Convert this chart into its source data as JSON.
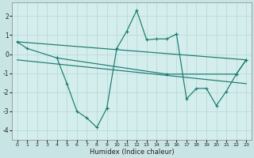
{
  "xlabel": "Humidex (Indice chaleur)",
  "xlim": [
    -0.5,
    23.5
  ],
  "ylim": [
    -4.5,
    2.7
  ],
  "yticks": [
    -4,
    -3,
    -2,
    -1,
    0,
    1,
    2
  ],
  "xticks": [
    0,
    1,
    2,
    3,
    4,
    5,
    6,
    7,
    8,
    9,
    10,
    11,
    12,
    13,
    14,
    15,
    16,
    17,
    18,
    19,
    20,
    21,
    22,
    23
  ],
  "line_color": "#1a7a6e",
  "bg_color": "#d4eeee",
  "grid_color": "#b8d4d4",
  "fig_bg": "#c8e4e4",
  "trend1_x": [
    0,
    23
  ],
  "trend1_y": [
    0.65,
    -0.3
  ],
  "trend2_x": [
    0,
    23
  ],
  "trend2_y": [
    -0.3,
    -1.55
  ],
  "seg_upper_x": [
    0,
    1,
    4,
    15,
    22,
    23
  ],
  "seg_upper_y": [
    0.65,
    0.3,
    -0.2,
    -1.05,
    -1.05,
    -0.3
  ],
  "seg_lower_left_x": [
    4,
    5,
    6,
    7,
    8,
    9
  ],
  "seg_lower_left_y": [
    -0.2,
    -1.55,
    -3.0,
    -3.35,
    -3.85,
    -2.85
  ],
  "seg_peak_x": [
    9,
    10,
    11,
    12,
    13,
    14,
    15,
    16
  ],
  "seg_peak_y": [
    -2.85,
    0.3,
    1.2,
    2.3,
    0.75,
    0.8,
    0.8,
    1.05
  ],
  "seg_right_x": [
    16,
    17,
    18,
    19,
    20,
    21,
    22,
    23
  ],
  "seg_right_y": [
    1.05,
    -2.35,
    -1.8,
    -1.8,
    -2.7,
    -1.95,
    -1.05,
    -0.3
  ]
}
